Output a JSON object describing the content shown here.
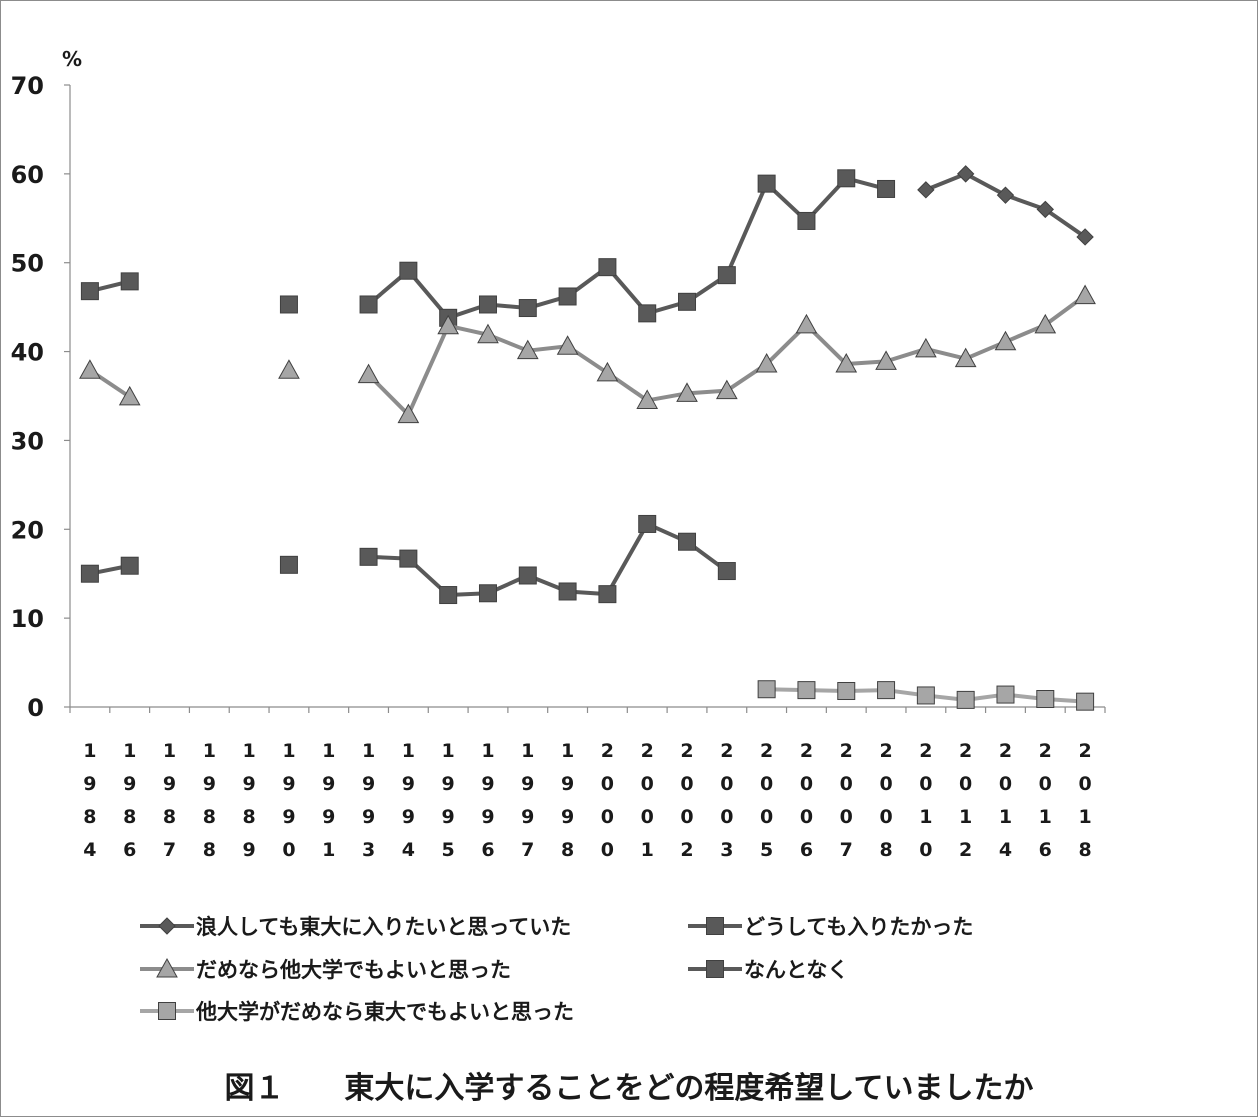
{
  "chart_data": {
    "type": "line",
    "ylabel": "%",
    "ylim": [
      0,
      70
    ],
    "yticks": [
      0,
      10,
      20,
      30,
      40,
      50,
      60,
      70
    ],
    "categories": [
      "1984",
      "1986",
      "1987",
      "1988",
      "1989",
      "1990",
      "1991",
      "1993",
      "1994",
      "1995",
      "1996",
      "1997",
      "1998",
      "2000",
      "2001",
      "2002",
      "2003",
      "2005",
      "2006",
      "2007",
      "2008",
      "2010",
      "2012",
      "2014",
      "2016",
      "2018"
    ],
    "series": [
      {
        "name": "浪人しても東大に入りたいと思っていた",
        "marker": "diamond",
        "color": "#595959",
        "values": [
          null,
          null,
          null,
          null,
          null,
          null,
          null,
          null,
          null,
          null,
          null,
          null,
          null,
          null,
          null,
          null,
          null,
          null,
          null,
          null,
          null,
          58.2,
          60.0,
          57.6,
          56.0,
          52.9
        ]
      },
      {
        "name": "どうしても入りたかった",
        "marker": "square",
        "color": "#595959",
        "values": [
          46.8,
          47.9,
          null,
          null,
          null,
          45.3,
          null,
          45.3,
          49.1,
          43.8,
          45.3,
          44.9,
          46.2,
          49.5,
          44.3,
          45.6,
          48.6,
          58.9,
          54.7,
          59.5,
          58.3,
          null,
          null,
          null,
          null,
          null
        ]
      },
      {
        "name": "だめなら他大学でもよいと思った",
        "marker": "triangle",
        "color": "#8c8c8c",
        "values": [
          37.9,
          34.9,
          null,
          null,
          null,
          37.9,
          null,
          37.4,
          32.9,
          42.9,
          41.9,
          40.1,
          40.6,
          37.6,
          34.5,
          35.3,
          35.6,
          38.6,
          43.0,
          38.6,
          38.9,
          40.3,
          39.2,
          41.1,
          43.0,
          46.3
        ]
      },
      {
        "name": "なんとなく",
        "marker": "square",
        "color": "#595959",
        "values": [
          15.0,
          15.9,
          null,
          null,
          null,
          16.0,
          null,
          16.9,
          16.7,
          12.6,
          12.8,
          14.8,
          13.0,
          12.7,
          20.6,
          18.6,
          15.3,
          null,
          null,
          null,
          null,
          null,
          null,
          null,
          null,
          null
        ]
      },
      {
        "name": "他大学がだめなら東大でもよいと思った",
        "marker": "square",
        "color": "#a6a6a6",
        "values": [
          null,
          null,
          null,
          null,
          null,
          null,
          null,
          null,
          null,
          null,
          null,
          null,
          null,
          null,
          null,
          null,
          null,
          2.0,
          1.9,
          1.8,
          1.9,
          1.3,
          0.8,
          1.4,
          0.9,
          0.6
        ]
      }
    ],
    "legend": "bottom",
    "grid": false
  },
  "caption": "図１　　東大に入学することをどの程度希望していましたか"
}
